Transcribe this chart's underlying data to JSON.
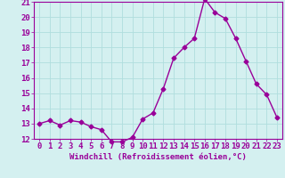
{
  "x": [
    0,
    1,
    2,
    3,
    4,
    5,
    6,
    7,
    8,
    9,
    10,
    11,
    12,
    13,
    14,
    15,
    16,
    17,
    18,
    19,
    20,
    21,
    22,
    23
  ],
  "y": [
    13.0,
    13.2,
    12.9,
    13.2,
    13.1,
    12.8,
    12.6,
    11.8,
    11.8,
    12.1,
    13.3,
    13.7,
    15.3,
    17.3,
    18.0,
    18.6,
    21.2,
    20.3,
    19.9,
    18.6,
    17.1,
    15.6,
    14.9,
    13.4
  ],
  "line_color": "#990099",
  "marker": "D",
  "marker_size": 2.5,
  "xlabel": "Windchill (Refroidissement éolien,°C)",
  "ylim": [
    12,
    21
  ],
  "yticks": [
    12,
    13,
    14,
    15,
    16,
    17,
    18,
    19,
    20,
    21
  ],
  "xticks": [
    0,
    1,
    2,
    3,
    4,
    5,
    6,
    7,
    8,
    9,
    10,
    11,
    12,
    13,
    14,
    15,
    16,
    17,
    18,
    19,
    20,
    21,
    22,
    23
  ],
  "background_color": "#d4f0f0",
  "grid_color": "#b0dede",
  "tick_color": "#990099",
  "label_color": "#990099",
  "xlabel_fontsize": 6.5,
  "tick_fontsize": 6.5,
  "linewidth": 1.0
}
